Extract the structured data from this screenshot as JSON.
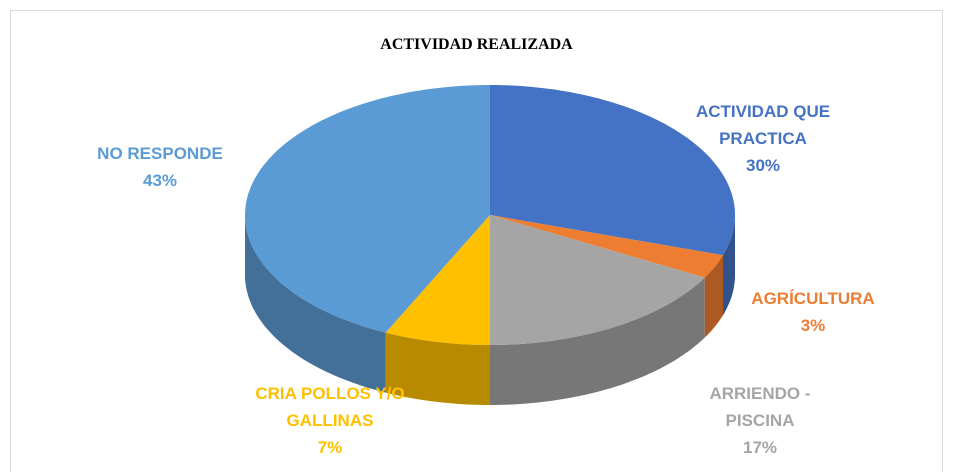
{
  "chart_data": {
    "type": "pie",
    "title": "ACTIVIDAD REALIZADA",
    "categories": [
      "ACTIVIDAD QUE PRACTICA",
      "AGRÍCULTURA",
      "ARRIENDO - PISCINA",
      "CRIA POLLOS Y/O GALLINAS",
      "NO RESPONDE"
    ],
    "values": [
      30,
      3,
      17,
      7,
      43
    ],
    "value_labels": [
      "30%",
      "3%",
      "17%",
      "7%",
      "43%"
    ],
    "colors": [
      "#4472c4",
      "#ed7d31",
      "#a5a5a5",
      "#ffc000",
      "#5b9bd5"
    ]
  }
}
